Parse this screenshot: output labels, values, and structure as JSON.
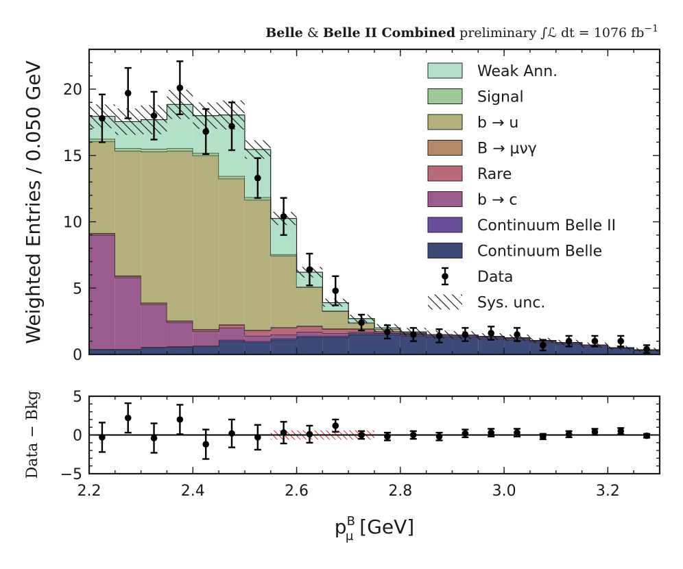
{
  "header": {
    "bold1": "Belle",
    "amp": " & ",
    "bold2": "Belle II Combined",
    "prelim": " preliminary ",
    "lumi": "∫ℒ dt = 1076 fb",
    "lumi_exp": "−1"
  },
  "chart_data": {
    "type": "bar",
    "bin_edges": [
      2.2,
      2.25,
      2.3,
      2.35,
      2.4,
      2.45,
      2.5,
      2.55,
      2.6,
      2.65,
      2.7,
      2.75,
      2.8,
      2.85,
      2.9,
      2.95,
      3.0,
      3.05,
      3.1,
      3.15,
      3.2,
      3.25,
      3.3
    ],
    "xlabel": "p",
    "xlabel_sup": "B",
    "xlabel_sub": "μ",
    "xlabel_unit": " [GeV]",
    "ylabel": "Weighted Entries / 0.050 GeV",
    "xlim": [
      2.2,
      3.3
    ],
    "ylim": [
      0,
      23
    ],
    "xticks": [
      2.2,
      2.4,
      2.6,
      2.8,
      3.0,
      3.2
    ],
    "xtick_labels": [
      "2.2",
      "2.4",
      "2.6",
      "2.8",
      "3.0",
      "3.2"
    ],
    "yticks": [
      0,
      5,
      10,
      15,
      20
    ],
    "ytick_labels": [
      "0",
      "5",
      "10",
      "15",
      "20"
    ],
    "series": [
      {
        "name": "Continuum Belle",
        "color": "#3d4a78",
        "values": [
          0.35,
          0.35,
          0.5,
          0.55,
          0.6,
          1.0,
          0.9,
          1.1,
          1.3,
          1.3,
          1.5,
          1.5,
          1.4,
          1.3,
          1.3,
          1.2,
          1.1,
          0.9,
          0.8,
          0.6,
          0.45,
          0.3
        ]
      },
      {
        "name": "Continuum Belle II",
        "color": "#6a4e9a",
        "values": [
          0.05,
          0.05,
          0.05,
          0.05,
          0.05,
          0.1,
          0.1,
          0.1,
          0.1,
          0.1,
          0.1,
          0.1,
          0.1,
          0.1,
          0.1,
          0.1,
          0.1,
          0.1,
          0.1,
          0.1,
          0.05,
          0.05
        ]
      },
      {
        "name": "b → c",
        "color": "#9a5c8e",
        "values": [
          8.6,
          5.4,
          3.2,
          1.8,
          1.1,
          0.9,
          0.4,
          0.3,
          0.3,
          0.2,
          0.1,
          0.05,
          0.05,
          0.0,
          0.0,
          0.0,
          0.0,
          0.0,
          0.0,
          0.0,
          0.0,
          0.0
        ]
      },
      {
        "name": "Rare",
        "color": "#b8697a",
        "values": [
          0.1,
          0.1,
          0.1,
          0.1,
          0.1,
          0.2,
          0.4,
          0.5,
          0.4,
          0.3,
          0.2,
          0.1,
          0.05,
          0.05,
          0.05,
          0.05,
          0.05,
          0.05,
          0.0,
          0.0,
          0.0,
          0.0
        ]
      },
      {
        "name": "B → μνγ",
        "color": "#b58a6a",
        "values": [
          0.05,
          0.05,
          0.05,
          0.05,
          0.05,
          0.05,
          0.05,
          0.05,
          0.05,
          0.05,
          0.05,
          0.0,
          0.0,
          0.0,
          0.0,
          0.0,
          0.0,
          0.0,
          0.0,
          0.0,
          0.0,
          0.0
        ]
      },
      {
        "name": "b → u",
        "color": "#b4b07e",
        "values": [
          6.9,
          9.4,
          11.4,
          12.8,
          13.1,
          11.0,
          9.8,
          5.4,
          2.9,
          1.3,
          0.4,
          0.15,
          0.05,
          0.0,
          0.0,
          0.0,
          0.0,
          0.0,
          0.0,
          0.0,
          0.0,
          0.0
        ]
      },
      {
        "name": "Signal",
        "color": "#9cc996",
        "values": [
          0.2,
          0.2,
          0.2,
          0.2,
          0.2,
          0.2,
          0.2,
          0.1,
          0.05,
          0.05,
          0.05,
          0.0,
          0.0,
          0.0,
          0.0,
          0.0,
          0.0,
          0.0,
          0.0,
          0.0,
          0.0,
          0.0
        ]
      },
      {
        "name": "Weak Ann.",
        "color": "#b3e0c8",
        "values": [
          1.7,
          2.0,
          2.2,
          3.3,
          2.8,
          4.6,
          3.6,
          2.7,
          1.1,
          0.6,
          0.3,
          0.1,
          0.05,
          0.05,
          0.0,
          0.0,
          0.0,
          0.0,
          0.0,
          0.0,
          0.0,
          0.0
        ]
      }
    ],
    "syst_half": [
      0.9,
      1.0,
      1.1,
      1.1,
      1.0,
      1.1,
      0.7,
      0.5,
      0.4,
      0.3,
      0.3,
      0.3,
      0.3,
      0.3,
      0.3,
      0.25,
      0.25,
      0.2,
      0.2,
      0.2,
      0.15,
      0.15
    ],
    "data": {
      "name": "Data",
      "values": [
        17.8,
        19.7,
        18.0,
        20.1,
        16.8,
        17.2,
        13.3,
        10.4,
        6.4,
        4.8,
        2.4,
        1.7,
        1.5,
        1.4,
        1.5,
        1.6,
        1.5,
        0.7,
        1.0,
        1.0,
        1.0,
        0.4
      ],
      "errors": [
        1.8,
        1.9,
        1.8,
        2.0,
        1.7,
        1.8,
        1.5,
        1.4,
        1.2,
        1.1,
        0.6,
        0.5,
        0.5,
        0.5,
        0.5,
        0.5,
        0.5,
        0.4,
        0.4,
        0.4,
        0.4,
        0.3
      ]
    },
    "legend": [
      "Weak Ann.",
      "Signal",
      "b → u",
      "B → μνγ",
      "Rare",
      "b → c",
      "Continuum Belle II",
      "Continuum Belle",
      "Data",
      "Sys. unc."
    ],
    "legend_position": "top-right",
    "ratio": {
      "ylabel": "Data − Bkg",
      "ylim": [
        -5,
        5
      ],
      "yticks": [
        -5,
        0,
        5
      ],
      "ytick_labels": [
        "−5",
        "0",
        "5"
      ],
      "values": [
        -0.3,
        2.2,
        -0.4,
        2.0,
        -1.2,
        0.2,
        -0.3,
        0.3,
        0.1,
        1.2,
        0.0,
        -0.2,
        0.0,
        -0.2,
        0.2,
        0.3,
        0.3,
        -0.2,
        0.1,
        0.4,
        0.5,
        -0.1
      ],
      "errors": [
        1.9,
        1.9,
        1.9,
        1.9,
        1.9,
        1.8,
        1.6,
        1.4,
        1.1,
        0.8,
        0.5,
        0.5,
        0.5,
        0.5,
        0.5,
        0.5,
        0.5,
        0.35,
        0.4,
        0.4,
        0.4,
        0.25
      ],
      "highlight_range": [
        2.55,
        2.75
      ],
      "highlight_color": "#e02020"
    }
  }
}
